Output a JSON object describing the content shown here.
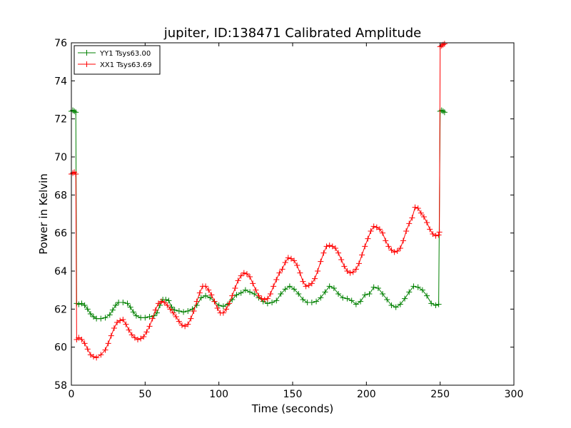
{
  "chart_data": {
    "type": "line",
    "title": "jupiter, ID:138471 Calibrated Amplitude",
    "xlabel": "Time (seconds)",
    "ylabel": "Power in Kelvin",
    "xlim": [
      0,
      300
    ],
    "ylim": [
      58,
      76
    ],
    "xticks": [
      0,
      50,
      100,
      150,
      200,
      250,
      300
    ],
    "yticks": [
      58,
      60,
      62,
      64,
      66,
      68,
      70,
      72,
      74,
      76
    ],
    "grid": false,
    "legend_position": "top-left",
    "marker": "+",
    "series": [
      {
        "name": "YY1 Tsys63.00",
        "color": "#008000",
        "points": [
          [
            0,
            72.4
          ],
          [
            1,
            72.45
          ],
          [
            2,
            72.4
          ],
          [
            3,
            72.35
          ],
          [
            3.6,
            62.3
          ],
          [
            5,
            62.25
          ],
          [
            7,
            62.3
          ],
          [
            9,
            62.2
          ],
          [
            11,
            62.0
          ],
          [
            13,
            61.75
          ],
          [
            15,
            61.6
          ],
          [
            17,
            61.5
          ],
          [
            20,
            61.5
          ],
          [
            23,
            61.55
          ],
          [
            26,
            61.7
          ],
          [
            28,
            61.95
          ],
          [
            30,
            62.2
          ],
          [
            32,
            62.35
          ],
          [
            35,
            62.35
          ],
          [
            38,
            62.3
          ],
          [
            40,
            62.1
          ],
          [
            42,
            61.85
          ],
          [
            44,
            61.65
          ],
          [
            47,
            61.55
          ],
          [
            50,
            61.55
          ],
          [
            53,
            61.6
          ],
          [
            56,
            61.65
          ],
          [
            58,
            61.8
          ],
          [
            60,
            62.2
          ],
          [
            62,
            62.5
          ],
          [
            64,
            62.5
          ],
          [
            66,
            62.45
          ],
          [
            68,
            62.1
          ],
          [
            70,
            61.95
          ],
          [
            73,
            61.9
          ],
          [
            76,
            61.85
          ],
          [
            79,
            61.9
          ],
          [
            82,
            62.0
          ],
          [
            85,
            62.2
          ],
          [
            88,
            62.6
          ],
          [
            91,
            62.7
          ],
          [
            94,
            62.6
          ],
          [
            97,
            62.4
          ],
          [
            100,
            62.2
          ],
          [
            103,
            62.15
          ],
          [
            106,
            62.25
          ],
          [
            109,
            62.5
          ],
          [
            112,
            62.75
          ],
          [
            115,
            62.85
          ],
          [
            118,
            63.0
          ],
          [
            121,
            62.9
          ],
          [
            124,
            62.8
          ],
          [
            127,
            62.6
          ],
          [
            130,
            62.4
          ],
          [
            133,
            62.3
          ],
          [
            136,
            62.35
          ],
          [
            139,
            62.45
          ],
          [
            142,
            62.8
          ],
          [
            145,
            63.05
          ],
          [
            148,
            63.2
          ],
          [
            151,
            63.05
          ],
          [
            154,
            62.8
          ],
          [
            157,
            62.5
          ],
          [
            160,
            62.35
          ],
          [
            163,
            62.35
          ],
          [
            166,
            62.4
          ],
          [
            169,
            62.6
          ],
          [
            172,
            62.9
          ],
          [
            175,
            63.2
          ],
          [
            178,
            63.1
          ],
          [
            181,
            62.8
          ],
          [
            184,
            62.6
          ],
          [
            187,
            62.55
          ],
          [
            190,
            62.45
          ],
          [
            193,
            62.25
          ],
          [
            196,
            62.4
          ],
          [
            199,
            62.75
          ],
          [
            202,
            62.8
          ],
          [
            205,
            63.15
          ],
          [
            208,
            63.1
          ],
          [
            211,
            62.8
          ],
          [
            214,
            62.5
          ],
          [
            217,
            62.2
          ],
          [
            220,
            62.1
          ],
          [
            223,
            62.25
          ],
          [
            226,
            62.55
          ],
          [
            229,
            62.9
          ],
          [
            232,
            63.2
          ],
          [
            235,
            63.15
          ],
          [
            238,
            63.0
          ],
          [
            241,
            62.7
          ],
          [
            244,
            62.3
          ],
          [
            247,
            62.2
          ],
          [
            249,
            62.25
          ],
          [
            250,
            72.4
          ],
          [
            251,
            72.45
          ],
          [
            252,
            72.4
          ],
          [
            253,
            72.35
          ]
        ]
      },
      {
        "name": "XX1 Tsys63.69",
        "color": "#ff0000",
        "points": [
          [
            0,
            69.1
          ],
          [
            1,
            69.15
          ],
          [
            2,
            69.2
          ],
          [
            3,
            69.1
          ],
          [
            3.6,
            60.4
          ],
          [
            5,
            60.5
          ],
          [
            7,
            60.4
          ],
          [
            9,
            60.2
          ],
          [
            11,
            59.9
          ],
          [
            13,
            59.6
          ],
          [
            15,
            59.5
          ],
          [
            17,
            59.45
          ],
          [
            20,
            59.6
          ],
          [
            23,
            59.85
          ],
          [
            25,
            60.2
          ],
          [
            27,
            60.6
          ],
          [
            29,
            61.0
          ],
          [
            31,
            61.3
          ],
          [
            33,
            61.4
          ],
          [
            35,
            61.45
          ],
          [
            37,
            61.2
          ],
          [
            39,
            60.9
          ],
          [
            41,
            60.65
          ],
          [
            43,
            60.5
          ],
          [
            45,
            60.4
          ],
          [
            47,
            60.45
          ],
          [
            49,
            60.55
          ],
          [
            51,
            60.8
          ],
          [
            53,
            61.1
          ],
          [
            55,
            61.5
          ],
          [
            57,
            61.95
          ],
          [
            59,
            62.3
          ],
          [
            61,
            62.4
          ],
          [
            63,
            62.35
          ],
          [
            65,
            62.2
          ],
          [
            67,
            62.0
          ],
          [
            69,
            61.8
          ],
          [
            71,
            61.6
          ],
          [
            73,
            61.35
          ],
          [
            75,
            61.15
          ],
          [
            77,
            61.1
          ],
          [
            79,
            61.2
          ],
          [
            81,
            61.5
          ],
          [
            83,
            61.9
          ],
          [
            85,
            62.4
          ],
          [
            87,
            62.85
          ],
          [
            89,
            63.2
          ],
          [
            91,
            63.2
          ],
          [
            93,
            63.0
          ],
          [
            95,
            62.75
          ],
          [
            97,
            62.4
          ],
          [
            99,
            62.05
          ],
          [
            101,
            61.8
          ],
          [
            103,
            61.8
          ],
          [
            105,
            62.0
          ],
          [
            107,
            62.3
          ],
          [
            109,
            62.7
          ],
          [
            111,
            63.1
          ],
          [
            113,
            63.5
          ],
          [
            115,
            63.75
          ],
          [
            117,
            63.9
          ],
          [
            119,
            63.85
          ],
          [
            121,
            63.7
          ],
          [
            123,
            63.35
          ],
          [
            125,
            63.0
          ],
          [
            127,
            62.7
          ],
          [
            129,
            62.55
          ],
          [
            131,
            62.5
          ],
          [
            133,
            62.55
          ],
          [
            135,
            62.8
          ],
          [
            137,
            63.2
          ],
          [
            139,
            63.55
          ],
          [
            141,
            63.9
          ],
          [
            143,
            64.1
          ],
          [
            145,
            64.45
          ],
          [
            147,
            64.7
          ],
          [
            149,
            64.65
          ],
          [
            151,
            64.55
          ],
          [
            153,
            64.3
          ],
          [
            155,
            63.9
          ],
          [
            157,
            63.45
          ],
          [
            159,
            63.2
          ],
          [
            161,
            63.25
          ],
          [
            163,
            63.35
          ],
          [
            165,
            63.6
          ],
          [
            167,
            64.0
          ],
          [
            169,
            64.5
          ],
          [
            171,
            64.95
          ],
          [
            173,
            65.3
          ],
          [
            175,
            65.35
          ],
          [
            177,
            65.3
          ],
          [
            179,
            65.2
          ],
          [
            181,
            64.95
          ],
          [
            183,
            64.6
          ],
          [
            185,
            64.25
          ],
          [
            187,
            64.0
          ],
          [
            189,
            63.9
          ],
          [
            191,
            63.95
          ],
          [
            193,
            64.1
          ],
          [
            195,
            64.4
          ],
          [
            197,
            64.85
          ],
          [
            199,
            65.3
          ],
          [
            201,
            65.7
          ],
          [
            203,
            66.1
          ],
          [
            205,
            66.35
          ],
          [
            207,
            66.3
          ],
          [
            209,
            66.2
          ],
          [
            211,
            66.0
          ],
          [
            213,
            65.6
          ],
          [
            215,
            65.3
          ],
          [
            217,
            65.1
          ],
          [
            219,
            65.0
          ],
          [
            221,
            65.05
          ],
          [
            223,
            65.2
          ],
          [
            225,
            65.6
          ],
          [
            227,
            66.1
          ],
          [
            229,
            66.5
          ],
          [
            231,
            66.8
          ],
          [
            233,
            67.35
          ],
          [
            235,
            67.3
          ],
          [
            237,
            67.05
          ],
          [
            239,
            66.85
          ],
          [
            241,
            66.55
          ],
          [
            243,
            66.2
          ],
          [
            245,
            65.95
          ],
          [
            247,
            65.85
          ],
          [
            249,
            65.9
          ],
          [
            249.5,
            66.05
          ],
          [
            250,
            75.8
          ],
          [
            251,
            75.85
          ],
          [
            252,
            75.9
          ],
          [
            253,
            75.95
          ]
        ]
      }
    ]
  }
}
